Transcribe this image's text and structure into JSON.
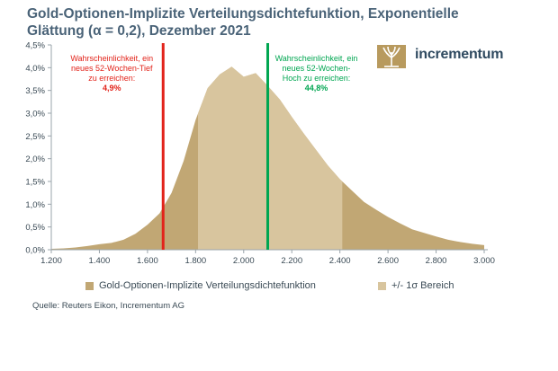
{
  "title": "Gold-Optionen-Implizite Verteilungsdichtefunktion, Exponentielle Glättung (α = 0,2), Dezember 2021",
  "logo_text": "incrementum",
  "source": "Quelle: Reuters Eikon, Incrementum AG",
  "colors": {
    "title": "#4a6378",
    "density": "#c1a774",
    "sigma": "#d8c59e",
    "red_line": "#e2231a",
    "green_line": "#00a651",
    "axis_text": "#3a4a55"
  },
  "chart_data": {
    "type": "area",
    "title": "Gold-Optionen-Implizite Verteilungsdichtefunktion, Exponentielle Glättung (α = 0,2), Dezember 2021",
    "x": [
      1200,
      1250,
      1300,
      1350,
      1400,
      1450,
      1500,
      1550,
      1600,
      1650,
      1700,
      1750,
      1800,
      1850,
      1900,
      1950,
      2000,
      2050,
      2100,
      2150,
      2200,
      2250,
      2300,
      2350,
      2400,
      2450,
      2500,
      2550,
      2600,
      2650,
      2700,
      2750,
      2800,
      2850,
      2900,
      2950,
      3000
    ],
    "y": [
      0.02,
      0.03,
      0.05,
      0.08,
      0.12,
      0.15,
      0.22,
      0.35,
      0.55,
      0.8,
      1.25,
      1.95,
      2.85,
      3.55,
      3.85,
      4.02,
      3.8,
      3.88,
      3.6,
      3.3,
      2.92,
      2.55,
      2.2,
      1.85,
      1.55,
      1.3,
      1.05,
      0.88,
      0.72,
      0.58,
      0.45,
      0.37,
      0.29,
      0.22,
      0.17,
      0.13,
      0.1
    ],
    "xlim": [
      1200,
      3000
    ],
    "ylim": [
      0,
      4.5
    ],
    "xticks": [
      1200,
      1400,
      1600,
      1800,
      2000,
      2200,
      2400,
      2600,
      2800,
      3000
    ],
    "xtick_labels": [
      "1.200",
      "1.400",
      "1.600",
      "1.800",
      "2.000",
      "2.200",
      "2.400",
      "2.600",
      "2.800",
      "3.000"
    ],
    "yticks": [
      0,
      0.5,
      1,
      1.5,
      2,
      2.5,
      3,
      3.5,
      4,
      4.5
    ],
    "ytick_labels": [
      "0,0%",
      "0,5%",
      "1,0%",
      "1,5%",
      "2,0%",
      "2,5%",
      "3,0%",
      "3,5%",
      "4,0%",
      "4,5%"
    ],
    "sigma_range": [
      1810,
      2410
    ],
    "grid": false,
    "legend_position": "bottom",
    "series": [
      {
        "name": "Gold-Optionen-Implizite Verteilungsdichtefunktion"
      },
      {
        "name": "+/- 1σ Bereich"
      }
    ],
    "vlines": [
      {
        "x": 1665,
        "label_lines": [
          "Wahrscheinlichkeit, ein",
          "neues 52-Wochen-Tief",
          "zu erreichen:"
        ],
        "value": "4,9%"
      },
      {
        "x": 2100,
        "label_lines": [
          "Wahrscheinlichkeit, ein",
          "neues 52-Wochen-",
          "Hoch zu erreichen:"
        ],
        "value": "44,8%"
      }
    ]
  }
}
